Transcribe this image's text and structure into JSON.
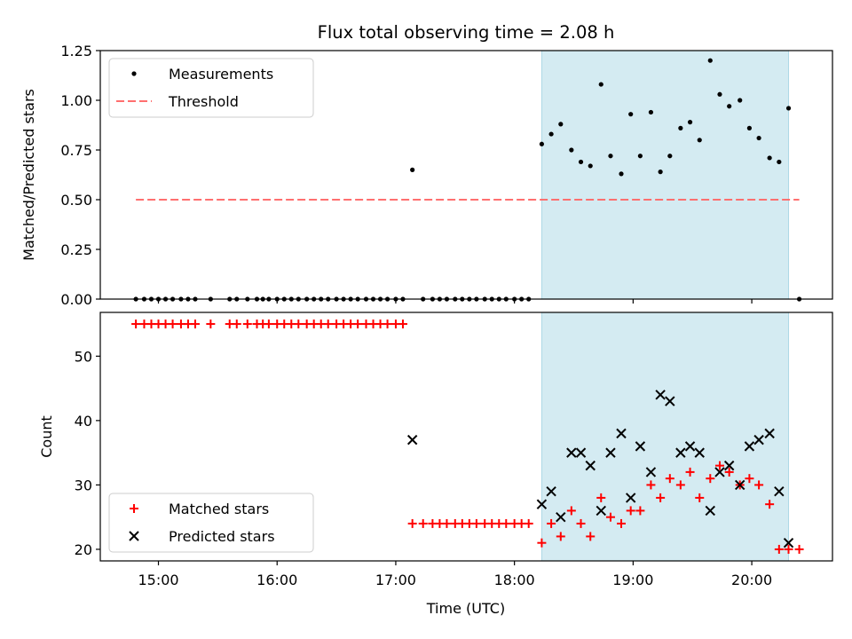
{
  "chart_data": {
    "title": "Flux total observing time = 2.08 h",
    "xlabel": "Time (UTC)",
    "x_unit": "hours UTC (decimal)",
    "x_ticks": [
      {
        "value": 15.0,
        "label": "15:00"
      },
      {
        "value": 16.0,
        "label": "16:00"
      },
      {
        "value": 17.0,
        "label": "17:00"
      },
      {
        "value": 18.0,
        "label": "18:00"
      },
      {
        "value": 19.0,
        "label": "19:00"
      },
      {
        "value": 20.0,
        "label": "20:00"
      }
    ],
    "xlim": [
      14.51,
      20.68
    ],
    "shaded_region": {
      "x_start": 18.23,
      "x_end": 20.31,
      "color": "#add8e6"
    },
    "panels": [
      {
        "type": "scatter",
        "ylabel": "Matched/Predicted stars",
        "ylim": [
          0.0,
          1.25
        ],
        "y_ticks": [
          {
            "value": 0.0,
            "label": "0.00"
          },
          {
            "value": 0.25,
            "label": "0.25"
          },
          {
            "value": 0.5,
            "label": "0.50"
          },
          {
            "value": 0.75,
            "label": "0.75"
          },
          {
            "value": 1.0,
            "label": "1.00"
          },
          {
            "value": 1.25,
            "label": "1.25"
          }
        ],
        "legend": {
          "position": "upper left",
          "entries": [
            "Measurements",
            "Threshold"
          ]
        },
        "series": [
          {
            "name": "Measurements",
            "marker": "dot",
            "color": "#000000",
            "x": [
              14.81,
              14.88,
              14.94,
              15.0,
              15.06,
              15.12,
              15.19,
              15.25,
              15.31,
              15.44,
              15.6,
              15.66,
              15.75,
              15.83,
              15.88,
              15.93,
              16.0,
              16.06,
              16.12,
              16.18,
              16.25,
              16.31,
              16.37,
              16.43,
              16.5,
              16.56,
              16.62,
              16.68,
              16.75,
              16.81,
              16.87,
              16.93,
              17.0,
              17.06,
              17.14,
              17.23,
              17.31,
              17.37,
              17.43,
              17.5,
              17.56,
              17.62,
              17.68,
              17.75,
              17.81,
              17.87,
              17.93,
              18.0,
              18.06,
              18.12,
              18.23,
              18.31,
              18.39,
              18.48,
              18.56,
              18.64,
              18.73,
              18.81,
              18.9,
              18.98,
              19.06,
              19.15,
              19.23,
              19.31,
              19.4,
              19.48,
              19.56,
              19.65,
              19.73,
              19.81,
              19.9,
              19.98,
              20.06,
              20.15,
              20.23,
              20.31,
              20.4
            ],
            "y": [
              0,
              0,
              0,
              0,
              0,
              0,
              0,
              0,
              0,
              0,
              0,
              0,
              0,
              0,
              0,
              0,
              0,
              0,
              0,
              0,
              0,
              0,
              0,
              0,
              0,
              0,
              0,
              0,
              0,
              0,
              0,
              0,
              0,
              0,
              0.65,
              0,
              0,
              0,
              0,
              0,
              0,
              0,
              0,
              0,
              0,
              0,
              0,
              0,
              0,
              0,
              0.78,
              0.83,
              0.88,
              0.75,
              0.69,
              0.67,
              1.08,
              0.72,
              0.63,
              0.93,
              0.72,
              0.94,
              0.64,
              0.72,
              0.86,
              0.89,
              0.8,
              1.2,
              1.03,
              0.97,
              1.0,
              0.86,
              0.81,
              0.71,
              0.69,
              0.96,
              0
            ]
          },
          {
            "name": "Threshold",
            "type": "line",
            "style": "dashed",
            "color": "#ff6f6f",
            "x": [
              14.81,
              20.4
            ],
            "y": [
              0.5,
              0.5
            ]
          }
        ]
      },
      {
        "type": "scatter",
        "ylabel": "Count",
        "ylim": [
          18.2,
          56.8
        ],
        "y_ticks": [
          {
            "value": 20,
            "label": "20"
          },
          {
            "value": 30,
            "label": "30"
          },
          {
            "value": 40,
            "label": "40"
          },
          {
            "value": 50,
            "label": "50"
          }
        ],
        "legend": {
          "position": "lower left",
          "entries": [
            "Matched stars",
            "Predicted stars"
          ]
        },
        "series": [
          {
            "name": "Matched stars",
            "marker": "plus",
            "color": "#ff0000",
            "x": [
              14.81,
              14.88,
              14.94,
              15.0,
              15.06,
              15.12,
              15.19,
              15.25,
              15.31,
              15.44,
              15.6,
              15.66,
              15.75,
              15.83,
              15.88,
              15.93,
              16.0,
              16.06,
              16.12,
              16.18,
              16.25,
              16.31,
              16.37,
              16.43,
              16.5,
              16.56,
              16.62,
              16.68,
              16.75,
              16.81,
              16.87,
              16.93,
              17.0,
              17.06,
              17.14,
              17.23,
              17.31,
              17.37,
              17.43,
              17.5,
              17.56,
              17.62,
              17.68,
              17.75,
              17.81,
              17.87,
              17.93,
              18.0,
              18.06,
              18.12,
              18.23,
              18.31,
              18.39,
              18.48,
              18.56,
              18.64,
              18.73,
              18.81,
              18.9,
              18.98,
              19.06,
              19.15,
              19.23,
              19.31,
              19.4,
              19.48,
              19.56,
              19.65,
              19.73,
              19.81,
              19.9,
              19.98,
              20.06,
              20.15,
              20.23,
              20.31,
              20.4
            ],
            "y": [
              55,
              55,
              55,
              55,
              55,
              55,
              55,
              55,
              55,
              55,
              55,
              55,
              55,
              55,
              55,
              55,
              55,
              55,
              55,
              55,
              55,
              55,
              55,
              55,
              55,
              55,
              55,
              55,
              55,
              55,
              55,
              55,
              55,
              55,
              24,
              24,
              24,
              24,
              24,
              24,
              24,
              24,
              24,
              24,
              24,
              24,
              24,
              24,
              24,
              24,
              21,
              24,
              22,
              26,
              24,
              22,
              28,
              25,
              24,
              26,
              26,
              30,
              28,
              31,
              30,
              32,
              28,
              31,
              33,
              32,
              30,
              31,
              30,
              27,
              20,
              20,
              20
            ]
          },
          {
            "name": "Predicted stars",
            "marker": "x",
            "color": "#000000",
            "x": [
              17.14,
              18.23,
              18.31,
              18.39,
              18.48,
              18.56,
              18.64,
              18.73,
              18.81,
              18.9,
              18.98,
              19.06,
              19.15,
              19.23,
              19.31,
              19.4,
              19.48,
              19.56,
              19.65,
              19.73,
              19.81,
              19.9,
              19.98,
              20.06,
              20.15,
              20.23,
              20.31
            ],
            "y": [
              37,
              27,
              29,
              25,
              35,
              35,
              33,
              26,
              35,
              38,
              28,
              36,
              32,
              44,
              43,
              35,
              36,
              35,
              26,
              32,
              33,
              30,
              36,
              37,
              38,
              29,
              21
            ]
          }
        ]
      }
    ]
  }
}
